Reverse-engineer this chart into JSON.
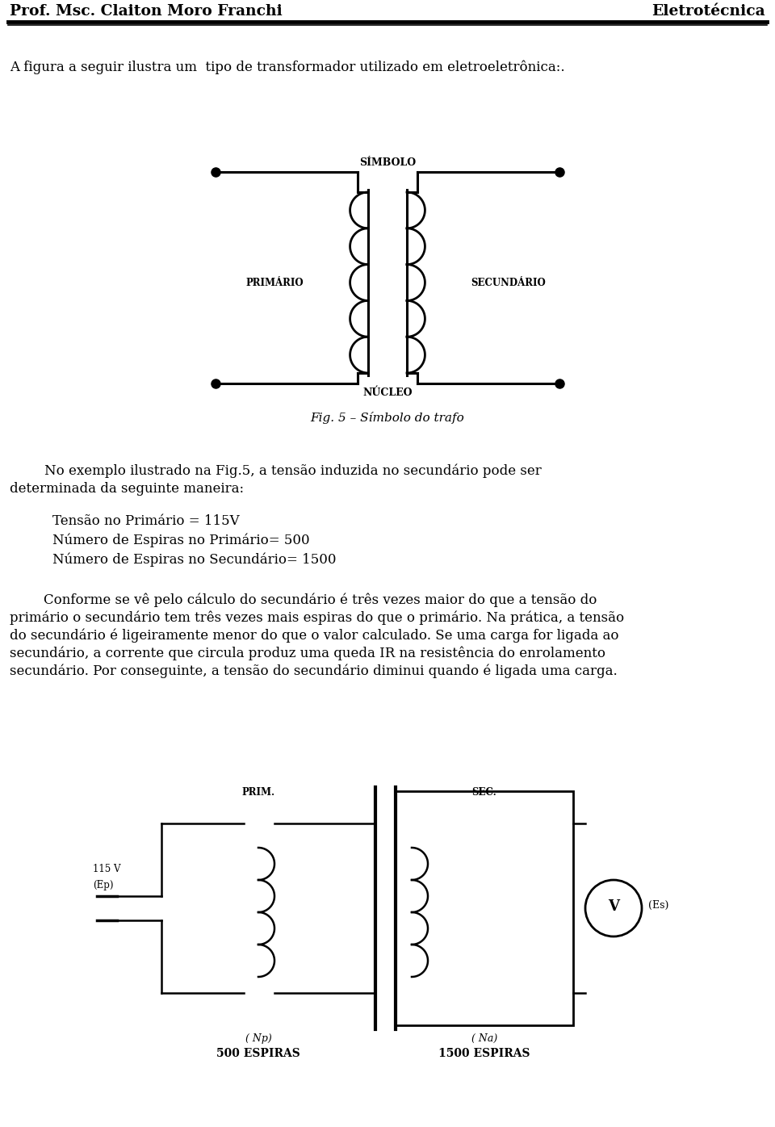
{
  "header_left": "Prof. Msc. Claiton Moro Franchi",
  "header_right": "Eletrotécnica",
  "para1": "A figura a seguir ilustra um  tipo de transformador utilizado em eletroeletrônica:.",
  "simbolo_label": "SÍMBOLO",
  "primario_label": "PRIMÁRIO",
  "secundario_label": "SECUNDÁRIO",
  "nucleo_label": "NÚCLEO",
  "fig_caption": "Fig. 5 – Símbolo do trafo",
  "text_block": "No exemplo ilustrado na Fig.5, a tensão induzida no secundário pode ser\ndeterminada da seguinte maneira:",
  "list_item1": "Tensão no Primário = 115V",
  "list_item2": "Número de Espiras no Primário= 500",
  "list_item3": "Número de Espiras no Secundário= 1500",
  "para_long": "        Conforme se vê pelo cálculo do secundário é três vezes maior do que a tensão do\nprimário o secundário tem três vezes mais espiras do que o primário. Na prática, a tensão\ndo secundário é ligeiramente menor do que o valor calculado. Se uma carga for ligada ao\nsecundário, a corrente que circula produz uma queda IR na resistência do enrolamento\nsecundário. Por conseguinte, a tensão do secundário diminui quando é ligada uma carga.",
  "label_115v": "115 V",
  "label_ep": "(Ep)",
  "label_prim": "PRIM.",
  "label_np": "( Np)",
  "label_sec": "SEC.",
  "label_ns": "( Na)",
  "label_es": "(Es)",
  "label_500": "500 ESPIRAS",
  "label_1500": "1500 ESPIRAS",
  "bg": "#ffffff",
  "fg": "#000000"
}
